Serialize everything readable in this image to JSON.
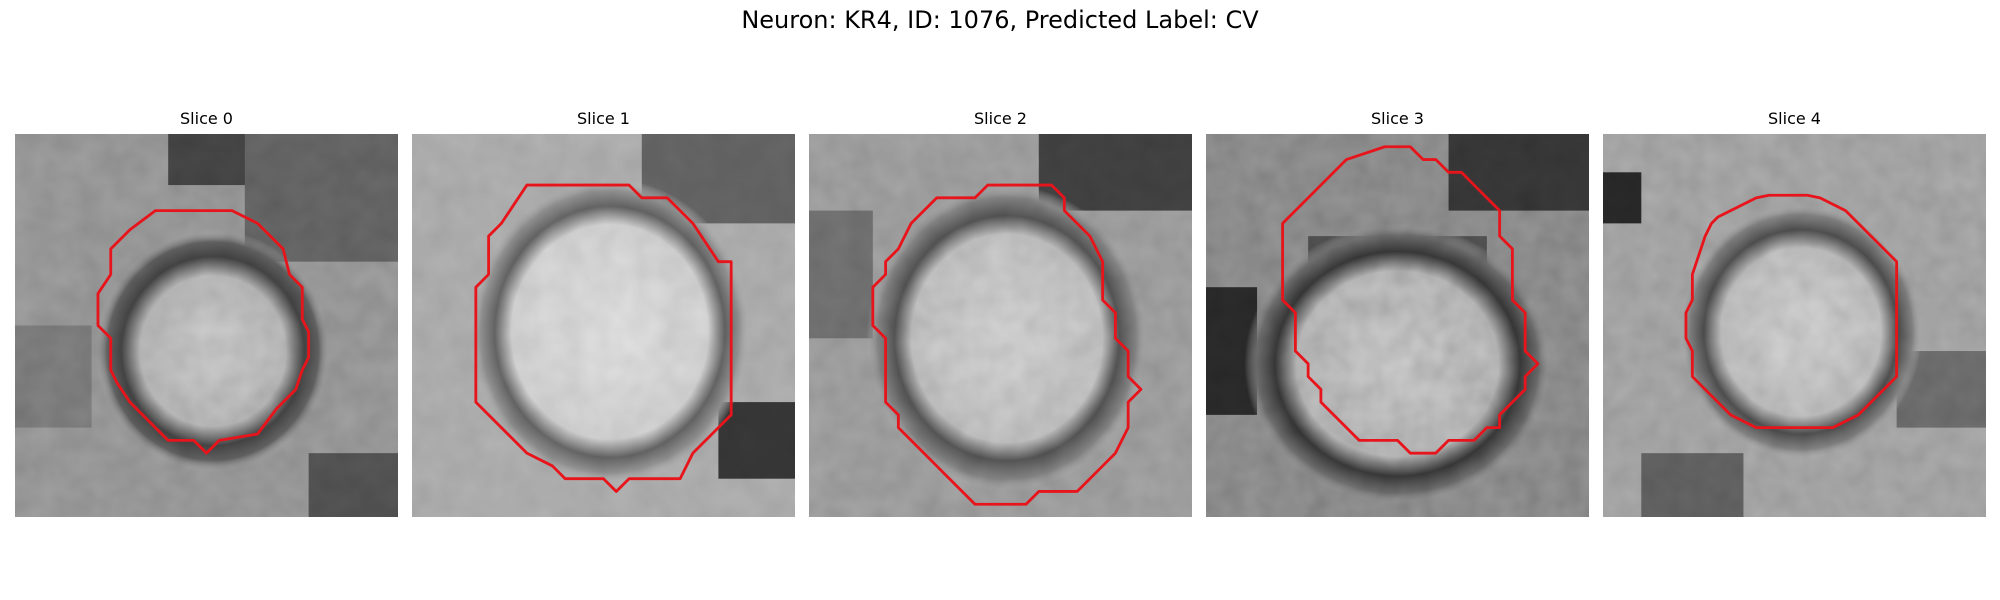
{
  "figure": {
    "title": "Neuron: KR4, ID: 1076, Predicted Label: CV"
  },
  "panels": [
    {
      "title": "Slice 0"
    },
    {
      "title": "Slice 1"
    },
    {
      "title": "Slice 2"
    },
    {
      "title": "Slice 3"
    },
    {
      "title": "Slice 4"
    }
  ],
  "colors": {
    "contour": "#e8141b",
    "background": "#ffffff"
  }
}
